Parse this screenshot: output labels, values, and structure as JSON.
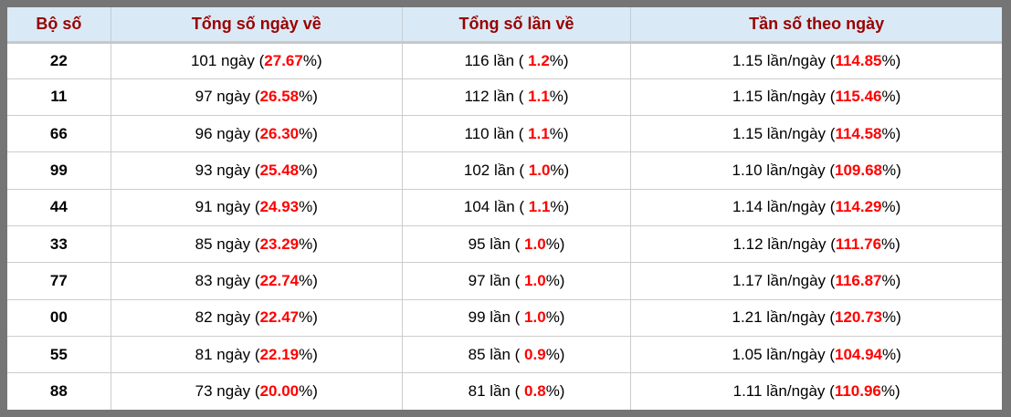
{
  "colors": {
    "frame_gray": "#757575",
    "header_bg": "#d9eaf6",
    "header_text": "#990000",
    "accent_red": "#ff0000",
    "grid_line": "#cccccc"
  },
  "table": {
    "headers": [
      "Bộ số",
      "Tổng số ngày về",
      "Tổng số lần về",
      "Tần số theo ngày"
    ],
    "paren_open": " (",
    "paren_open_spaced": " ( ",
    "paren_close": "%)",
    "rows": [
      {
        "pair": "22",
        "days_label": "101 ngày",
        "days_pct": "27.67",
        "times_label": "116 lần",
        "times_pct": "1.2",
        "freq_label": "1.15 lần/ngày",
        "freq_pct": "114.85"
      },
      {
        "pair": "11",
        "days_label": "97 ngày",
        "days_pct": "26.58",
        "times_label": "112 lần",
        "times_pct": "1.1",
        "freq_label": "1.15 lần/ngày",
        "freq_pct": "115.46"
      },
      {
        "pair": "66",
        "days_label": "96 ngày",
        "days_pct": "26.30",
        "times_label": "110 lần",
        "times_pct": "1.1",
        "freq_label": "1.15 lần/ngày",
        "freq_pct": "114.58"
      },
      {
        "pair": "99",
        "days_label": "93 ngày",
        "days_pct": "25.48",
        "times_label": "102 lần",
        "times_pct": "1.0",
        "freq_label": "1.10 lần/ngày",
        "freq_pct": "109.68"
      },
      {
        "pair": "44",
        "days_label": "91 ngày",
        "days_pct": "24.93",
        "times_label": "104 lần",
        "times_pct": "1.1",
        "freq_label": "1.14 lần/ngày",
        "freq_pct": "114.29"
      },
      {
        "pair": "33",
        "days_label": "85 ngày",
        "days_pct": "23.29",
        "times_label": "95 lần",
        "times_pct": "1.0",
        "freq_label": "1.12 lần/ngày",
        "freq_pct": "111.76"
      },
      {
        "pair": "77",
        "days_label": "83 ngày",
        "days_pct": "22.74",
        "times_label": "97 lần",
        "times_pct": "1.0",
        "freq_label": "1.17 lần/ngày",
        "freq_pct": "116.87"
      },
      {
        "pair": "00",
        "days_label": "82 ngày",
        "days_pct": "22.47",
        "times_label": "99 lần",
        "times_pct": "1.0",
        "freq_label": "1.21 lần/ngày",
        "freq_pct": "120.73"
      },
      {
        "pair": "55",
        "days_label": "81 ngày",
        "days_pct": "22.19",
        "times_label": "85 lần",
        "times_pct": "0.9",
        "freq_label": "1.05 lần/ngày",
        "freq_pct": "104.94"
      },
      {
        "pair": "88",
        "days_label": "73 ngày",
        "days_pct": "20.00",
        "times_label": "81 lần",
        "times_pct": "0.8",
        "freq_label": "1.11 lần/ngày",
        "freq_pct": "110.96"
      }
    ]
  }
}
